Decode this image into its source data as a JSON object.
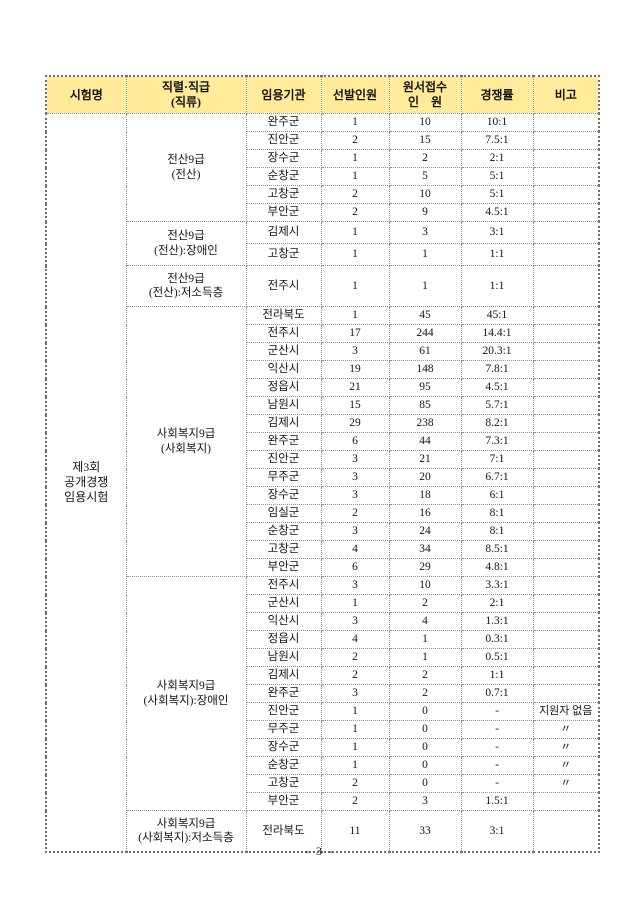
{
  "page": {
    "footer": "- 3 -"
  },
  "table": {
    "headers": {
      "exam": "시험명",
      "category": "직렬·직급\n(직류)",
      "agency": "임용기관",
      "selected": "선발인원",
      "applicants": "원서접수\n인    원",
      "ratio": "경쟁률",
      "note": "비고"
    },
    "exam_name": "제3회\n공개경쟁\n임용시험",
    "groups": [
      {
        "category": "전산9급\n(전산)",
        "rows": [
          {
            "agency": "완주군",
            "selected": "1",
            "applicants": "10",
            "ratio": "10:1",
            "note": ""
          },
          {
            "agency": "진안군",
            "selected": "2",
            "applicants": "15",
            "ratio": "7.5:1",
            "note": ""
          },
          {
            "agency": "장수군",
            "selected": "1",
            "applicants": "2",
            "ratio": "2:1",
            "note": ""
          },
          {
            "agency": "순창군",
            "selected": "1",
            "applicants": "5",
            "ratio": "5:1",
            "note": ""
          },
          {
            "agency": "고창군",
            "selected": "2",
            "applicants": "10",
            "ratio": "5:1",
            "note": ""
          },
          {
            "agency": "부안군",
            "selected": "2",
            "applicants": "9",
            "ratio": "4.5:1",
            "note": ""
          }
        ]
      },
      {
        "category": "전산9급\n(전산):장애인",
        "rows": [
          {
            "agency": "김제시",
            "selected": "1",
            "applicants": "3",
            "ratio": "3:1",
            "note": ""
          },
          {
            "agency": "고창군",
            "selected": "1",
            "applicants": "1",
            "ratio": "1:1",
            "note": ""
          }
        ]
      },
      {
        "category": "전산9급\n(전산):저소득층",
        "rows": [
          {
            "agency": "전주시",
            "selected": "1",
            "applicants": "1",
            "ratio": "1:1",
            "note": ""
          }
        ]
      },
      {
        "category": "사회복지9급\n(사회복지)",
        "rows": [
          {
            "agency": "전라북도",
            "selected": "1",
            "applicants": "45",
            "ratio": "45:1",
            "note": ""
          },
          {
            "agency": "전주시",
            "selected": "17",
            "applicants": "244",
            "ratio": "14.4:1",
            "note": ""
          },
          {
            "agency": "군산시",
            "selected": "3",
            "applicants": "61",
            "ratio": "20.3:1",
            "note": ""
          },
          {
            "agency": "익산시",
            "selected": "19",
            "applicants": "148",
            "ratio": "7.8:1",
            "note": ""
          },
          {
            "agency": "정읍시",
            "selected": "21",
            "applicants": "95",
            "ratio": "4.5:1",
            "note": ""
          },
          {
            "agency": "남원시",
            "selected": "15",
            "applicants": "85",
            "ratio": "5.7:1",
            "note": ""
          },
          {
            "agency": "김제시",
            "selected": "29",
            "applicants": "238",
            "ratio": "8.2:1",
            "note": ""
          },
          {
            "agency": "완주군",
            "selected": "6",
            "applicants": "44",
            "ratio": "7.3:1",
            "note": ""
          },
          {
            "agency": "진안군",
            "selected": "3",
            "applicants": "21",
            "ratio": "7:1",
            "note": ""
          },
          {
            "agency": "무주군",
            "selected": "3",
            "applicants": "20",
            "ratio": "6.7:1",
            "note": ""
          },
          {
            "agency": "장수군",
            "selected": "3",
            "applicants": "18",
            "ratio": "6:1",
            "note": ""
          },
          {
            "agency": "임실군",
            "selected": "2",
            "applicants": "16",
            "ratio": "8:1",
            "note": ""
          },
          {
            "agency": "순창군",
            "selected": "3",
            "applicants": "24",
            "ratio": "8:1",
            "note": ""
          },
          {
            "agency": "고창군",
            "selected": "4",
            "applicants": "34",
            "ratio": "8.5:1",
            "note": ""
          },
          {
            "agency": "부안군",
            "selected": "6",
            "applicants": "29",
            "ratio": "4.8:1",
            "note": ""
          }
        ]
      },
      {
        "category": "사회복지9급\n(사회복지):장애인",
        "rows": [
          {
            "agency": "전주시",
            "selected": "3",
            "applicants": "10",
            "ratio": "3.3:1",
            "note": ""
          },
          {
            "agency": "군산시",
            "selected": "1",
            "applicants": "2",
            "ratio": "2:1",
            "note": ""
          },
          {
            "agency": "익산시",
            "selected": "3",
            "applicants": "4",
            "ratio": "1.3:1",
            "note": ""
          },
          {
            "agency": "정읍시",
            "selected": "4",
            "applicants": "1",
            "ratio": "0.3:1",
            "note": ""
          },
          {
            "agency": "남원시",
            "selected": "2",
            "applicants": "1",
            "ratio": "0.5:1",
            "note": ""
          },
          {
            "agency": "김제시",
            "selected": "2",
            "applicants": "2",
            "ratio": "1:1",
            "note": ""
          },
          {
            "agency": "완주군",
            "selected": "3",
            "applicants": "2",
            "ratio": "0.7:1",
            "note": ""
          },
          {
            "agency": "진안군",
            "selected": "1",
            "applicants": "0",
            "ratio": "-",
            "note": "지원자 없음"
          },
          {
            "agency": "무주군",
            "selected": "1",
            "applicants": "0",
            "ratio": "-",
            "note": "〃"
          },
          {
            "agency": "장수군",
            "selected": "1",
            "applicants": "0",
            "ratio": "-",
            "note": "〃"
          },
          {
            "agency": "순창군",
            "selected": "1",
            "applicants": "0",
            "ratio": "-",
            "note": "〃"
          },
          {
            "agency": "고창군",
            "selected": "2",
            "applicants": "0",
            "ratio": "-",
            "note": "〃"
          },
          {
            "agency": "부안군",
            "selected": "2",
            "applicants": "3",
            "ratio": "1.5:1",
            "note": ""
          }
        ]
      },
      {
        "category": "사회복지9급\n(사회복지):저소득층",
        "rows": [
          {
            "agency": "전라북도",
            "selected": "11",
            "applicants": "33",
            "ratio": "3:1",
            "note": ""
          }
        ]
      }
    ]
  }
}
